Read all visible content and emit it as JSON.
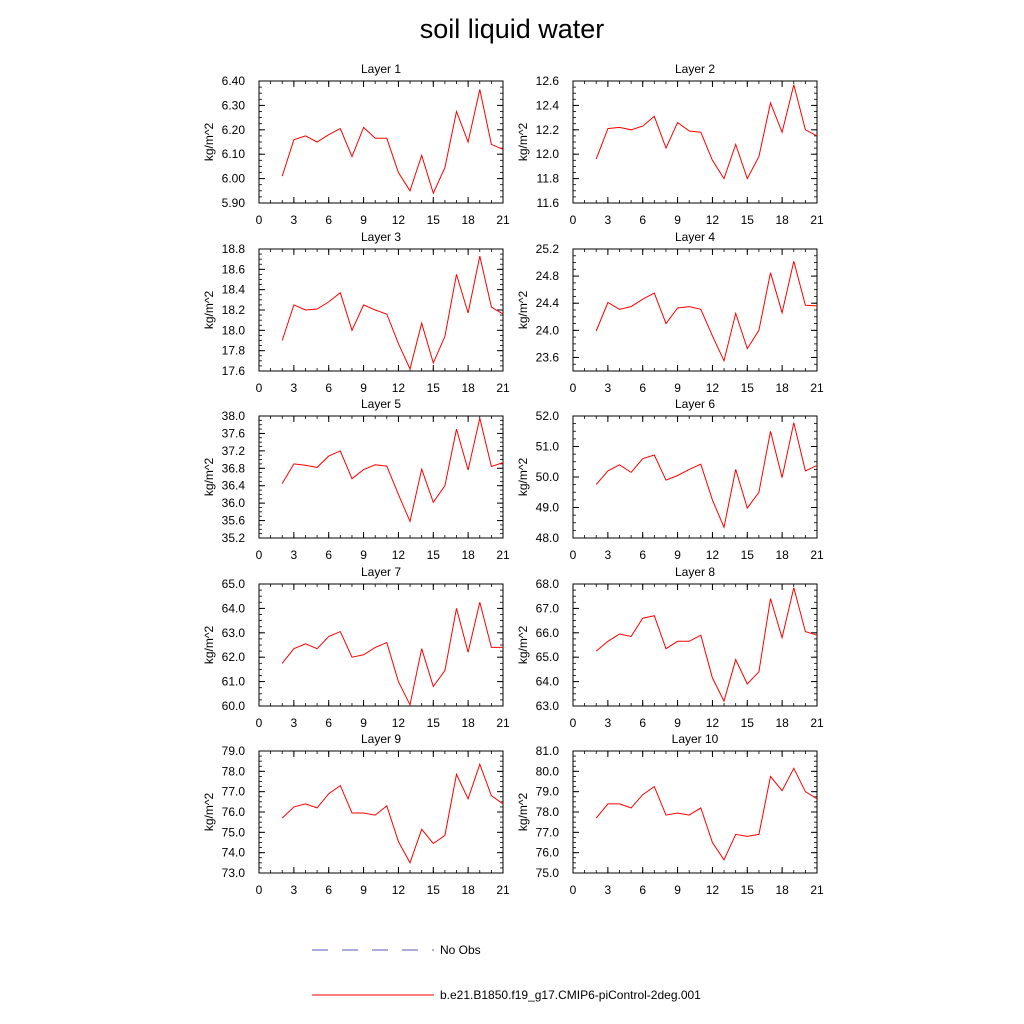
{
  "title": "soil liquid water",
  "chart_data": [
    {
      "type": "line",
      "title": "Layer 1",
      "ylabel": "kg/m^2",
      "xlim": [
        0,
        21
      ],
      "ylim": [
        5.9,
        6.4
      ],
      "xticks": [
        "0",
        "3",
        "6",
        "9",
        "12",
        "15",
        "18",
        "21"
      ],
      "yticks": [
        "5.90",
        "6.00",
        "6.10",
        "6.20",
        "6.30",
        "6.40"
      ],
      "series": [
        {
          "name": "b.e21.B1850.f19_g17.CMIP6-piControl-2deg.001",
          "color": "#ff0000",
          "x": [
            2,
            3,
            4,
            5,
            6,
            7,
            8,
            9,
            10,
            11,
            12,
            13,
            14,
            15,
            16,
            17,
            18,
            19,
            20,
            21
          ],
          "y": [
            6.01,
            6.16,
            6.175,
            6.15,
            6.18,
            6.205,
            6.09,
            6.21,
            6.165,
            6.165,
            6.025,
            5.95,
            6.095,
            5.94,
            6.045,
            6.275,
            6.15,
            6.365,
            6.14,
            6.12
          ]
        }
      ]
    },
    {
      "type": "line",
      "title": "Layer 2",
      "ylabel": "kg/m^2",
      "xlim": [
        0,
        21
      ],
      "ylim": [
        11.6,
        12.6
      ],
      "xticks": [
        "0",
        "3",
        "6",
        "9",
        "12",
        "15",
        "18",
        "21"
      ],
      "yticks": [
        "11.6",
        "11.8",
        "12.0",
        "12.2",
        "12.4",
        "12.6"
      ],
      "series": [
        {
          "name": "b.e21.B1850.f19_g17.CMIP6-piControl-2deg.001",
          "color": "#ff0000",
          "x": [
            2,
            3,
            4,
            5,
            6,
            7,
            8,
            9,
            10,
            11,
            12,
            13,
            14,
            15,
            16,
            17,
            18,
            19,
            20,
            21
          ],
          "y": [
            11.96,
            12.21,
            12.22,
            12.2,
            12.23,
            12.31,
            12.05,
            12.26,
            12.19,
            12.18,
            11.95,
            11.8,
            12.08,
            11.8,
            11.98,
            12.42,
            12.18,
            12.57,
            12.2,
            12.15
          ]
        }
      ]
    },
    {
      "type": "line",
      "title": "Layer 3",
      "ylabel": "kg/m^2",
      "xlim": [
        0,
        21
      ],
      "ylim": [
        17.6,
        18.8
      ],
      "xticks": [
        "0",
        "3",
        "6",
        "9",
        "12",
        "15",
        "18",
        "21"
      ],
      "yticks": [
        "17.6",
        "17.8",
        "18.0",
        "18.2",
        "18.4",
        "18.6",
        "18.8"
      ],
      "series": [
        {
          "name": "b.e21.B1850.f19_g17.CMIP6-piControl-2deg.001",
          "color": "#ff0000",
          "x": [
            2,
            3,
            4,
            5,
            6,
            7,
            8,
            9,
            10,
            11,
            12,
            13,
            14,
            15,
            16,
            17,
            18,
            19,
            20,
            21
          ],
          "y": [
            17.9,
            18.25,
            18.2,
            18.21,
            18.28,
            18.37,
            18.0,
            18.25,
            18.2,
            18.16,
            17.87,
            17.62,
            18.07,
            17.68,
            17.94,
            18.55,
            18.17,
            18.73,
            18.23,
            18.16
          ]
        }
      ]
    },
    {
      "type": "line",
      "title": "Layer 4",
      "ylabel": "kg/m^2",
      "xlim": [
        0,
        21
      ],
      "ylim": [
        23.4,
        25.2
      ],
      "xticks": [
        "0",
        "3",
        "6",
        "9",
        "12",
        "15",
        "18",
        "21"
      ],
      "yticks": [
        "23.6",
        "24.0",
        "24.4",
        "24.8",
        "25.2"
      ],
      "series": [
        {
          "name": "b.e21.B1850.f19_g17.CMIP6-piControl-2deg.001",
          "color": "#ff0000",
          "x": [
            2,
            3,
            4,
            5,
            6,
            7,
            8,
            9,
            10,
            11,
            12,
            13,
            14,
            15,
            16,
            17,
            18,
            19,
            20,
            21
          ],
          "y": [
            23.99,
            24.41,
            24.31,
            24.35,
            24.46,
            24.55,
            24.1,
            24.33,
            24.35,
            24.31,
            23.92,
            23.55,
            24.25,
            23.73,
            24.0,
            24.85,
            24.26,
            25.02,
            24.37,
            24.36
          ]
        }
      ]
    },
    {
      "type": "line",
      "title": "Layer 5",
      "ylabel": "kg/m^2",
      "xlim": [
        0,
        21
      ],
      "ylim": [
        35.2,
        38.0
      ],
      "xticks": [
        "0",
        "3",
        "6",
        "9",
        "12",
        "15",
        "18",
        "21"
      ],
      "yticks": [
        "35.2",
        "35.6",
        "36.0",
        "36.4",
        "36.8",
        "37.2",
        "37.6",
        "38.0"
      ],
      "series": [
        {
          "name": "b.e21.B1850.f19_g17.CMIP6-piControl-2deg.001",
          "color": "#ff0000",
          "x": [
            2,
            3,
            4,
            5,
            6,
            7,
            8,
            9,
            10,
            11,
            12,
            13,
            14,
            15,
            16,
            17,
            18,
            19,
            20,
            21
          ],
          "y": [
            36.45,
            36.9,
            36.87,
            36.82,
            37.08,
            37.2,
            36.56,
            36.77,
            36.88,
            36.85,
            36.2,
            35.58,
            36.78,
            36.02,
            36.4,
            37.7,
            36.76,
            37.95,
            36.84,
            36.93
          ]
        }
      ]
    },
    {
      "type": "line",
      "title": "Layer 6",
      "ylabel": "kg/m^2",
      "xlim": [
        0,
        21
      ],
      "ylim": [
        48.0,
        52.0
      ],
      "xticks": [
        "0",
        "3",
        "6",
        "9",
        "12",
        "15",
        "18",
        "21"
      ],
      "yticks": [
        "48.0",
        "49.0",
        "50.0",
        "51.0",
        "52.0"
      ],
      "series": [
        {
          "name": "b.e21.B1850.f19_g17.CMIP6-piControl-2deg.001",
          "color": "#ff0000",
          "x": [
            2,
            3,
            4,
            5,
            6,
            7,
            8,
            9,
            10,
            11,
            12,
            13,
            14,
            15,
            16,
            17,
            18,
            19,
            20,
            21
          ],
          "y": [
            49.75,
            50.2,
            50.4,
            50.15,
            50.6,
            50.72,
            49.9,
            50.05,
            50.25,
            50.42,
            49.25,
            48.35,
            50.25,
            48.98,
            49.5,
            51.5,
            49.98,
            51.78,
            50.2,
            50.38
          ]
        }
      ]
    },
    {
      "type": "line",
      "title": "Layer 7",
      "ylabel": "kg/m^2",
      "xlim": [
        0,
        21
      ],
      "ylim": [
        60.0,
        65.0
      ],
      "xticks": [
        "0",
        "3",
        "6",
        "9",
        "12",
        "15",
        "18",
        "21"
      ],
      "yticks": [
        "60.0",
        "61.0",
        "62.0",
        "63.0",
        "64.0",
        "65.0"
      ],
      "series": [
        {
          "name": "b.e21.B1850.f19_g17.CMIP6-piControl-2deg.001",
          "color": "#ff0000",
          "x": [
            2,
            3,
            4,
            5,
            6,
            7,
            8,
            9,
            10,
            11,
            12,
            13,
            14,
            15,
            16,
            17,
            18,
            19,
            20,
            21
          ],
          "y": [
            61.75,
            62.35,
            62.55,
            62.35,
            62.85,
            63.05,
            62.0,
            62.1,
            62.4,
            62.6,
            61.0,
            60.05,
            62.35,
            60.8,
            61.45,
            64.0,
            62.2,
            64.25,
            62.4,
            62.4
          ]
        }
      ]
    },
    {
      "type": "line",
      "title": "Layer 8",
      "ylabel": "kg/m^2",
      "xlim": [
        0,
        21
      ],
      "ylim": [
        63.0,
        68.0
      ],
      "xticks": [
        "0",
        "3",
        "6",
        "9",
        "12",
        "15",
        "18",
        "21"
      ],
      "yticks": [
        "63.0",
        "64.0",
        "65.0",
        "66.0",
        "67.0",
        "68.0"
      ],
      "series": [
        {
          "name": "b.e21.B1850.f19_g17.CMIP6-piControl-2deg.001",
          "color": "#ff0000",
          "x": [
            2,
            3,
            4,
            5,
            6,
            7,
            8,
            9,
            10,
            11,
            12,
            13,
            14,
            15,
            16,
            17,
            18,
            19,
            20,
            21
          ],
          "y": [
            65.25,
            65.65,
            65.95,
            65.85,
            66.6,
            66.7,
            65.35,
            65.65,
            65.65,
            65.9,
            64.15,
            63.2,
            64.9,
            63.9,
            64.4,
            67.4,
            65.8,
            67.85,
            66.05,
            65.9
          ]
        }
      ]
    },
    {
      "type": "line",
      "title": "Layer 9",
      "ylabel": "kg/m^2",
      "xlim": [
        0,
        21
      ],
      "ylim": [
        73.0,
        79.0
      ],
      "xticks": [
        "0",
        "3",
        "6",
        "9",
        "12",
        "15",
        "18",
        "21"
      ],
      "yticks": [
        "73.0",
        "74.0",
        "75.0",
        "76.0",
        "77.0",
        "78.0",
        "79.0"
      ],
      "series": [
        {
          "name": "b.e21.B1850.f19_g17.CMIP6-piControl-2deg.001",
          "color": "#ff0000",
          "x": [
            2,
            3,
            4,
            5,
            6,
            7,
            8,
            9,
            10,
            11,
            12,
            13,
            14,
            15,
            16,
            17,
            18,
            19,
            20,
            21
          ],
          "y": [
            75.7,
            76.25,
            76.4,
            76.2,
            76.9,
            77.3,
            75.95,
            75.95,
            75.85,
            76.3,
            74.55,
            73.5,
            75.15,
            74.45,
            74.85,
            77.85,
            76.65,
            78.35,
            76.8,
            76.4
          ]
        }
      ]
    },
    {
      "type": "line",
      "title": "Layer 10",
      "ylabel": "kg/m^2",
      "xlim": [
        0,
        21
      ],
      "ylim": [
        75.0,
        81.0
      ],
      "xticks": [
        "0",
        "3",
        "6",
        "9",
        "12",
        "15",
        "18",
        "21"
      ],
      "yticks": [
        "75.0",
        "76.0",
        "77.0",
        "78.0",
        "79.0",
        "80.0",
        "81.0"
      ],
      "series": [
        {
          "name": "b.e21.B1850.f19_g17.CMIP6-piControl-2deg.001",
          "color": "#ff0000",
          "x": [
            2,
            3,
            4,
            5,
            6,
            7,
            8,
            9,
            10,
            11,
            12,
            13,
            14,
            15,
            16,
            17,
            18,
            19,
            20,
            21
          ],
          "y": [
            77.7,
            78.4,
            78.4,
            78.2,
            78.85,
            79.25,
            77.85,
            77.95,
            77.85,
            78.2,
            76.5,
            75.65,
            76.9,
            76.8,
            76.9,
            79.75,
            79.05,
            80.15,
            79.0,
            78.65
          ]
        }
      ]
    }
  ],
  "legend": {
    "placement": "bottom-center",
    "items": [
      {
        "label": "No Obs",
        "color": "#5a5ab4",
        "style": "dashed"
      },
      {
        "label": "b.e21.B1850.f19_g17.CMIP6-piControl-2deg.001",
        "color": "#ff0000",
        "style": "solid"
      }
    ]
  }
}
